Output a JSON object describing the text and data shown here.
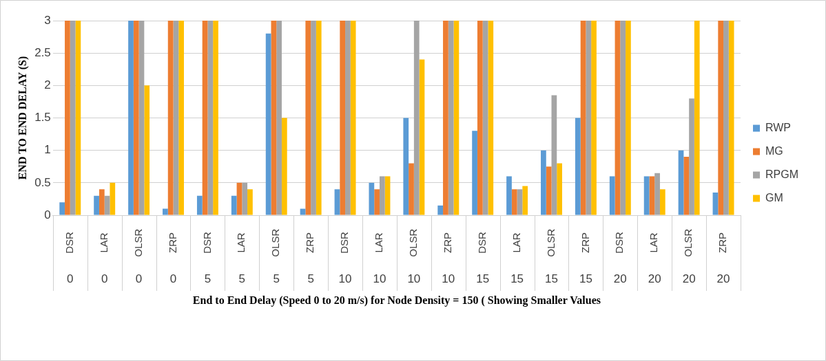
{
  "chart_data": {
    "type": "bar",
    "ylabel": "END TO END DELAY (S)",
    "annotations": [
      "End to End Delay (Speed 0 to 20 m/s) for Node Density = 150 ( Showing Smaller Values"
    ],
    "categories": [
      "DSR\n0",
      "LAR\n0",
      "OLSR\n0",
      "ZRP\n0",
      "DSR\n5",
      "LAR\n5",
      "OLSR\n5",
      "ZRP\n5",
      "DSR\n10",
      "LAR\n10",
      "OLSR\n10",
      "ZRP\n10",
      "DSR\n15",
      "LAR\n15",
      "OLSR\n15",
      "ZRP\n15",
      "DSR\n20",
      "LAR\n20",
      "OLSR\n20",
      "ZRP\n20"
    ],
    "series": [
      {
        "name": "RWP",
        "color": "#5b9bd5",
        "values": [
          0.2,
          0.3,
          3,
          0.1,
          0.3,
          0.3,
          2.8,
          0.1,
          0.4,
          0.5,
          1.5,
          0.15,
          1.3,
          0.6,
          1.0,
          1.5,
          0.6,
          0.6,
          1.0,
          0.35
        ]
      },
      {
        "name": "MG",
        "color": "#ed7d31",
        "values": [
          3,
          0.4,
          3,
          3,
          3,
          0.5,
          3,
          3,
          3,
          0.4,
          0.8,
          3,
          3,
          0.4,
          0.75,
          3,
          3,
          0.6,
          0.9,
          3
        ]
      },
      {
        "name": "RPGM",
        "color": "#a5a5a5",
        "values": [
          3,
          0.3,
          3,
          3,
          3,
          0.5,
          3,
          3,
          3,
          0.6,
          3,
          3,
          3,
          0.4,
          1.85,
          3,
          3,
          0.65,
          1.8,
          3
        ]
      },
      {
        "name": "GM",
        "color": "#ffc000",
        "values": [
          3,
          0.5,
          2,
          3,
          3,
          0.4,
          1.5,
          3,
          3,
          0.6,
          2.4,
          3,
          3,
          0.45,
          0.8,
          3,
          3,
          0.4,
          3,
          3
        ]
      }
    ],
    "ylim": [
      0,
      3
    ],
    "yticks": [
      0,
      0.5,
      1,
      1.5,
      2,
      2.5,
      3
    ],
    "grid": "y",
    "legend": "right"
  }
}
